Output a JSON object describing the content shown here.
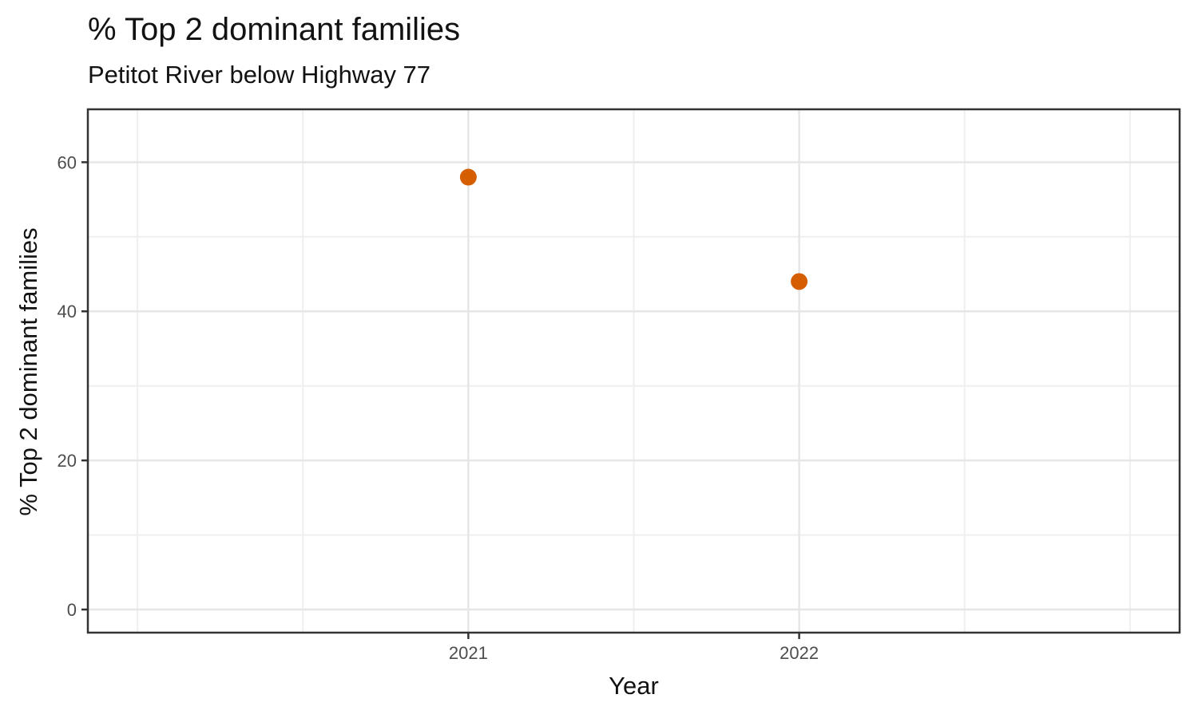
{
  "chart_data": {
    "type": "scatter",
    "title": "% Top 2 dominant families",
    "subtitle": "Petitot River below Highway 77",
    "xlabel": "Year",
    "ylabel": "% Top 2 dominant families",
    "series": [
      {
        "name": "% Top 2 dominant families",
        "points": [
          {
            "x": 2021,
            "y": 58
          },
          {
            "x": 2022,
            "y": 44
          }
        ]
      }
    ],
    "x_axis": {
      "range": [
        2019.85,
        2023.15
      ],
      "major_ticks": [
        2021,
        2022
      ],
      "tick_labels": [
        "2021",
        "2022"
      ],
      "minor_gridlines": [
        2020,
        2020.5,
        2021.5,
        2022.5,
        2023
      ]
    },
    "y_axis": {
      "range": [
        -3.1,
        67.1
      ],
      "major_ticks": [
        0,
        20,
        40,
        60
      ],
      "tick_labels": [
        "0",
        "20",
        "40",
        "60"
      ],
      "minor_gridlines": [
        10,
        30,
        50
      ]
    },
    "grid": true,
    "legend": false,
    "style": {
      "point_color": "#D55E00",
      "point_radius": 10.5,
      "panel_background": "#FFFFFF",
      "outer_background": "#FFFFFF",
      "grid_major_color": "#E6E6E6",
      "grid_minor_color": "#EFEFEF",
      "panel_border_color": "#333333",
      "tick_mark_color": "#333333",
      "tick_label_color": "#4D4D4D",
      "title_color": "#121212"
    }
  }
}
